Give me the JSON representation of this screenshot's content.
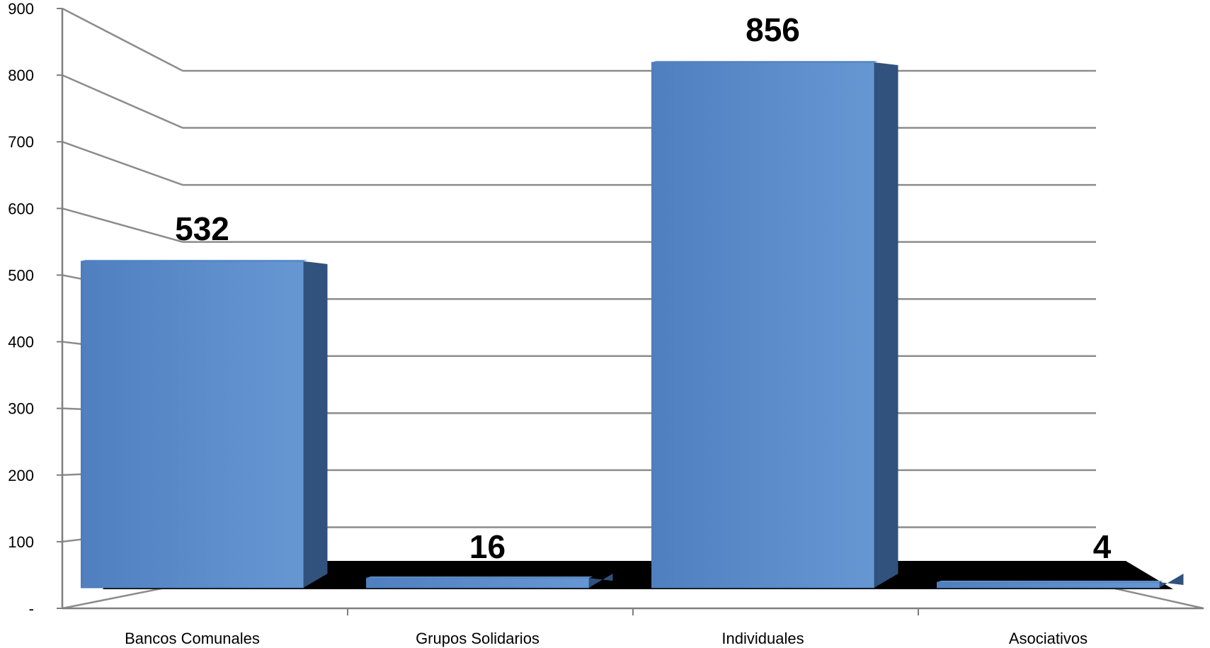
{
  "chart_data": {
    "type": "bar",
    "title": "",
    "xlabel": "",
    "ylabel": "",
    "categories": [
      "Bancos Comunales",
      "Grupos Solidarios",
      "Individuales",
      "Asociativos"
    ],
    "values": [
      532,
      16,
      856,
      4
    ],
    "data_labels": [
      "532",
      "16",
      "856",
      "4"
    ],
    "y_ticks": [
      {
        "value": 0,
        "label": "-"
      },
      {
        "value": 100,
        "label": "100"
      },
      {
        "value": 200,
        "label": "200"
      },
      {
        "value": 300,
        "label": "300"
      },
      {
        "value": 400,
        "label": "400"
      },
      {
        "value": 500,
        "label": "500"
      },
      {
        "value": 600,
        "label": "600"
      },
      {
        "value": 700,
        "label": "700"
      },
      {
        "value": 800,
        "label": "800"
      },
      {
        "value": 900,
        "label": "900"
      }
    ],
    "ylim": [
      0,
      900
    ],
    "grid": true,
    "style": "3d-perspective",
    "colors": {
      "bar_front": "#5b8cc9",
      "bar_side": "#30527c",
      "bar_top": "#6e9bd2",
      "floor": "#000000",
      "grid": "#8c8c8c",
      "axis": "#7f7f7f"
    }
  }
}
